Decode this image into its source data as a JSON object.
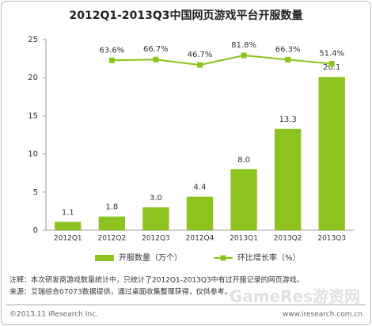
{
  "chart_data": {
    "type": "bar",
    "title": "2012Q1-2013Q3中国网页游戏平台开服数量",
    "categories": [
      "2012Q1",
      "2012Q2",
      "2012Q3",
      "2012Q4",
      "2013Q1",
      "2013Q2",
      "2013Q3"
    ],
    "series": [
      {
        "name": "开服数量（万个）",
        "type": "bar",
        "color": "#8cc31e",
        "values": [
          1.1,
          1.8,
          3.0,
          4.4,
          8.0,
          13.3,
          20.1
        ],
        "value_labels": [
          "1.1",
          "1.8",
          "3.0",
          "4.4",
          "8.0",
          "13.3",
          "20.1"
        ]
      },
      {
        "name": "环比增长率（%）",
        "type": "line",
        "axis": "y2",
        "color": "#8cc31e",
        "values": [
          null,
          63.6,
          66.7,
          46.7,
          81.8,
          66.3,
          51.4
        ],
        "value_labels": [
          null,
          "63.6%",
          "66.7%",
          "46.7%",
          "81.8%",
          "66.3%",
          "51.4%"
        ]
      }
    ],
    "ylim": [
      0,
      25
    ],
    "yticks": [
      0,
      5,
      10,
      15,
      20,
      25
    ],
    "y2lim": [
      -560,
      140
    ],
    "grid": false,
    "legend": "bottom",
    "notes": [
      "注释：本次研发商游戏数量统计中，只统计了2012Q1-2013Q3中有过开服记录的网页游戏。",
      "来源：艾瑞综合07073数据提供，通过桌面收集整理获得，仅供参考。"
    ],
    "watermark": "GameRes游资网",
    "copyright": "©2013.11 iResearch Inc.",
    "website": "www.iresearch.com.cn"
  }
}
